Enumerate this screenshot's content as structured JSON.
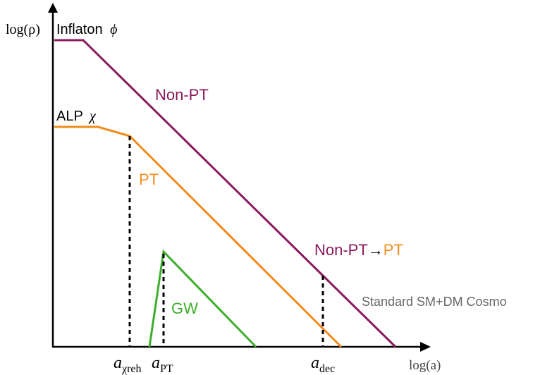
{
  "axes": {
    "y_label": "log(ρ)",
    "x_label": "log(a)"
  },
  "curves": {
    "inflaton": {
      "label": "Inflaton",
      "symbol": "ϕ",
      "color": "#8B1A5C"
    },
    "alp": {
      "label": "ALP",
      "symbol": "χ",
      "color": "#000000",
      "line_color": "#F28C1E"
    },
    "gw": {
      "label": "GW",
      "color": "#3DAE2B"
    }
  },
  "annotations": {
    "non_pt": "Non-PT",
    "pt": "PT",
    "non_pt_to_pt_prefix": "Non-PT",
    "arrow": "→",
    "non_pt_to_pt_suffix": "PT",
    "standard": "Standard SM+DM Cosmo"
  },
  "x_markers": {
    "a_chi_reh": {
      "base": "a",
      "sub": "χreh"
    },
    "a_pt": {
      "base": "a",
      "sub": "PT"
    },
    "a_dec": {
      "base": "a",
      "sub": "dec"
    }
  },
  "colors": {
    "inflaton": "#8B1A5C",
    "alp": "#F28C1E",
    "gw": "#3DAE2B",
    "standard_text": "#666666",
    "axis": "#000000"
  }
}
